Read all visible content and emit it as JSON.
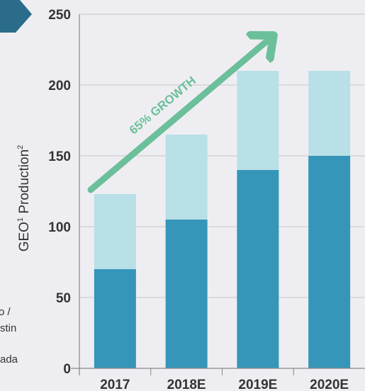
{
  "chart_data": {
    "type": "bar",
    "stacked": true,
    "categories": [
      "2017",
      "2018E",
      "2019E",
      "2020E"
    ],
    "series": [
      {
        "values": [
          70,
          105,
          140,
          150
        ],
        "color": "#3596b9"
      },
      {
        "values": [
          53,
          60,
          70,
          60
        ],
        "color": "#b9dfe7"
      }
    ],
    "ylabel": "GEO",
    "ylabel_sup1": "1",
    "ylabel_tail": " Production",
    "ylabel_sup2": "2",
    "ylim": [
      0,
      250
    ],
    "yticks": [
      "0",
      "50",
      "100",
      "150",
      "200",
      "250"
    ],
    "grid": "horizontal",
    "annotation": {
      "text": "65% GROWTH",
      "color": "#6bbf9a"
    }
  },
  "legend_fragments": [
    "o /",
    "stin",
    "ada"
  ],
  "colors": {
    "background": "#eeeef2",
    "badge": "#2b6c8a",
    "axis": "#888888"
  }
}
